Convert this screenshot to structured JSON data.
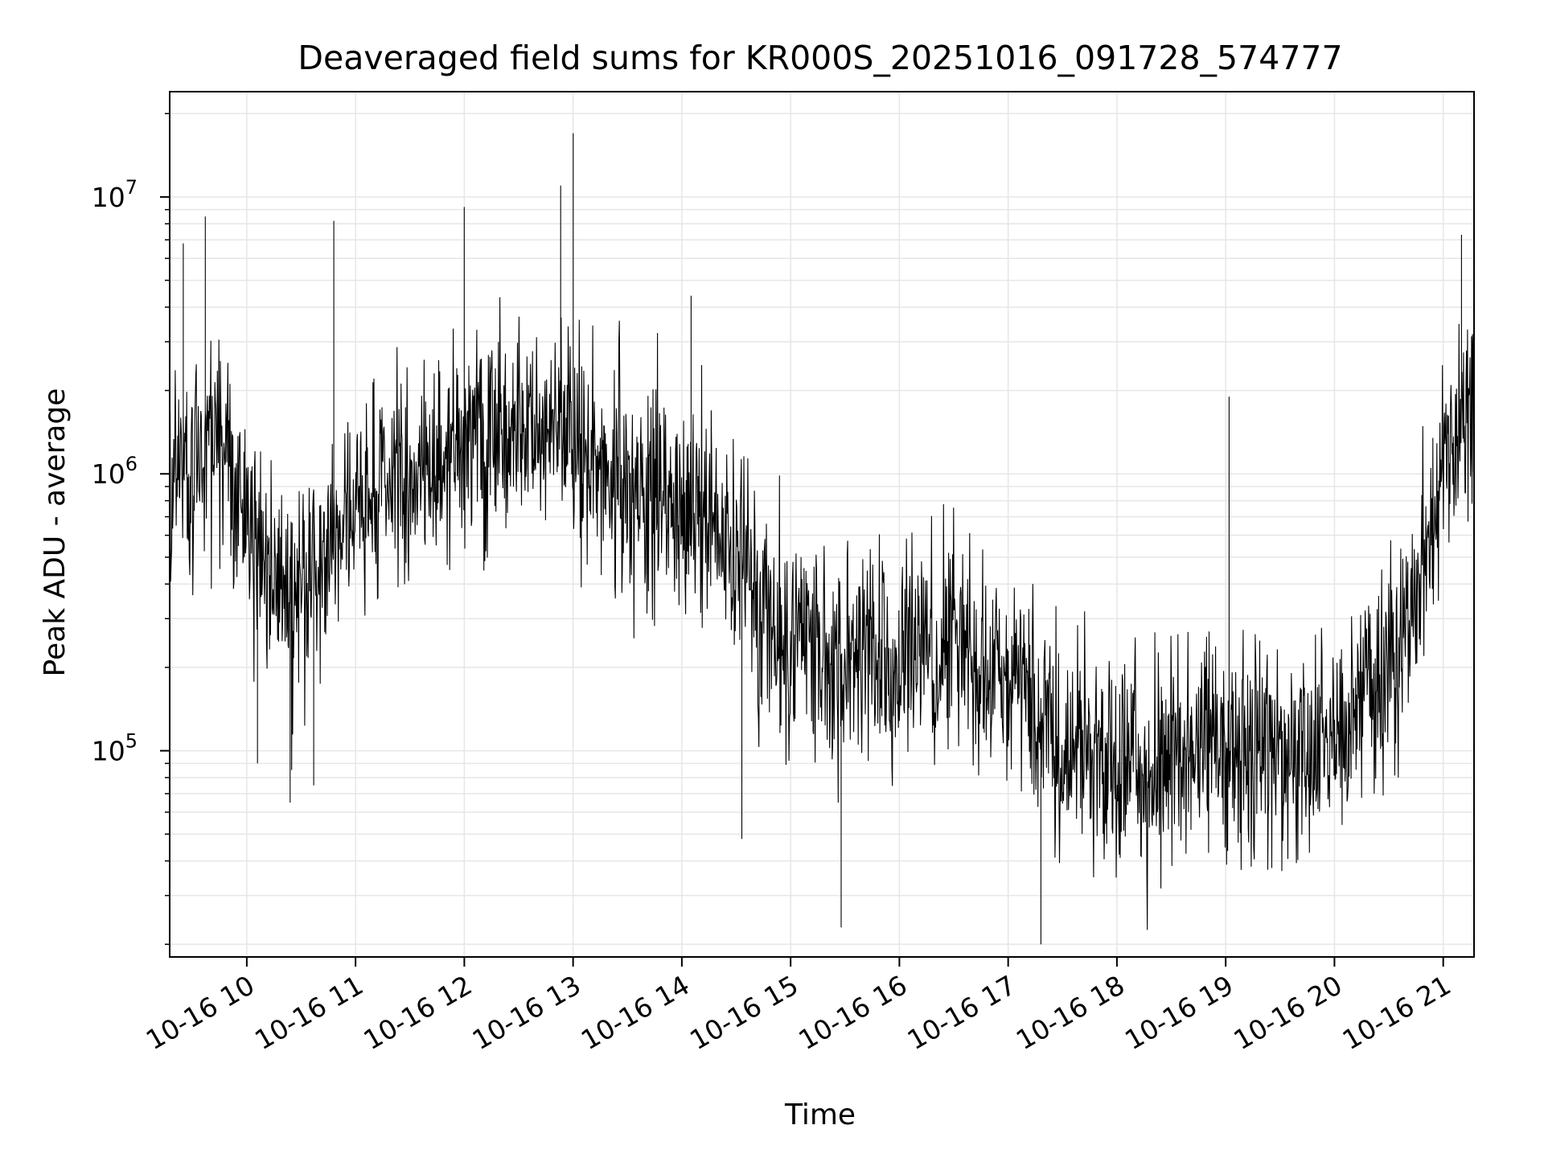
{
  "chart_data": {
    "type": "line",
    "title": "Deaveraged field sums for KR000S_20251016_091728_574777",
    "xlabel": "Time",
    "ylabel": "Peak ADU - average",
    "yscale": "log",
    "ylim": [
      18000,
      24000000
    ],
    "xlim": [
      "2025-10-16T09:17:28",
      "2025-10-16T21:17:00"
    ],
    "grid": true,
    "line_color": "#000000",
    "grid_color": "#e6e6e6",
    "x_ticks": [
      {
        "value": "2025-10-16T10:00",
        "label": "10-16 10"
      },
      {
        "value": "2025-10-16T11:00",
        "label": "10-16 11"
      },
      {
        "value": "2025-10-16T12:00",
        "label": "10-16 12"
      },
      {
        "value": "2025-10-16T13:00",
        "label": "10-16 13"
      },
      {
        "value": "2025-10-16T14:00",
        "label": "10-16 14"
      },
      {
        "value": "2025-10-16T15:00",
        "label": "10-16 15"
      },
      {
        "value": "2025-10-16T16:00",
        "label": "10-16 16"
      },
      {
        "value": "2025-10-16T17:00",
        "label": "10-16 17"
      },
      {
        "value": "2025-10-16T18:00",
        "label": "10-16 18"
      },
      {
        "value": "2025-10-16T19:00",
        "label": "10-16 19"
      },
      {
        "value": "2025-10-16T20:00",
        "label": "10-16 20"
      },
      {
        "value": "2025-10-16T21:00",
        "label": "10-16 21"
      }
    ],
    "y_ticks": [
      {
        "value": 100000,
        "base": "10",
        "exp": "5"
      },
      {
        "value": 1000000,
        "base": "10",
        "exp": "6"
      },
      {
        "value": 10000000,
        "base": "10",
        "exp": "7"
      }
    ],
    "envelope": {
      "x": [
        "2025-10-16T09:17",
        "2025-10-16T09:30",
        "2025-10-16T09:45",
        "2025-10-16T10:00",
        "2025-10-16T10:15",
        "2025-10-16T10:30",
        "2025-10-16T10:45",
        "2025-10-16T11:00",
        "2025-10-16T11:15",
        "2025-10-16T11:30",
        "2025-10-16T12:00",
        "2025-10-16T12:30",
        "2025-10-16T13:00",
        "2025-10-16T13:30",
        "2025-10-16T14:00",
        "2025-10-16T14:30",
        "2025-10-16T15:00",
        "2025-10-16T15:30",
        "2025-10-16T16:00",
        "2025-10-16T16:30",
        "2025-10-16T17:00",
        "2025-10-16T17:30",
        "2025-10-16T18:00",
        "2025-10-16T18:30",
        "2025-10-16T19:00",
        "2025-10-16T19:30",
        "2025-10-16T20:00",
        "2025-10-16T20:30",
        "2025-10-16T20:45",
        "2025-10-16T21:00",
        "2025-10-16T21:17"
      ],
      "median": [
        900000,
        1000000,
        1300000,
        700000,
        400000,
        400000,
        500000,
        800000,
        900000,
        1000000,
        1300000,
        1500000,
        1500000,
        800000,
        800000,
        500000,
        250000,
        200000,
        220000,
        250000,
        200000,
        110000,
        90000,
        90000,
        110000,
        100000,
        110000,
        180000,
        300000,
        1000000,
        1800000
      ]
    },
    "series": [
      {
        "values": [
          {
            "x": "2025-10-16T09:25",
            "y": 6800000
          },
          {
            "x": "2025-10-16T09:37",
            "y": 8500000
          },
          {
            "x": "2025-10-16T10:06",
            "y": 90000
          },
          {
            "x": "2025-10-16T10:24",
            "y": 65000
          },
          {
            "x": "2025-10-16T10:37",
            "y": 75000
          },
          {
            "x": "2025-10-16T10:48",
            "y": 8200000
          },
          {
            "x": "2025-10-16T12:00",
            "y": 9200000
          },
          {
            "x": "2025-10-16T12:53",
            "y": 11000000
          },
          {
            "x": "2025-10-16T13:00",
            "y": 17000000
          },
          {
            "x": "2025-10-16T14:05",
            "y": 4400000
          },
          {
            "x": "2025-10-16T14:33",
            "y": 48000
          },
          {
            "x": "2025-10-16T15:28",
            "y": 23000
          },
          {
            "x": "2025-10-16T17:18",
            "y": 20000
          },
          {
            "x": "2025-10-16T19:02",
            "y": 1900000
          },
          {
            "x": "2025-10-16T21:10",
            "y": 7300000
          }
        ]
      }
    ]
  }
}
